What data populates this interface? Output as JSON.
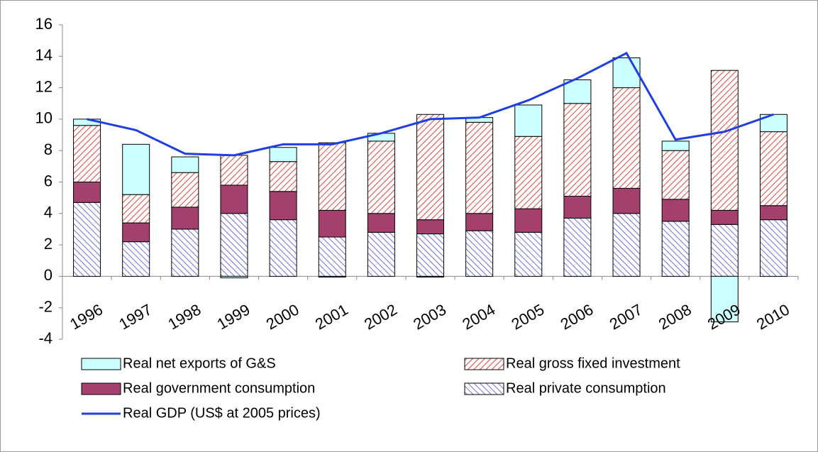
{
  "chart_data": {
    "type": "bar",
    "stacked": true,
    "categories": [
      "1996",
      "1997",
      "1998",
      "1999",
      "2000",
      "2001",
      "2002",
      "2003",
      "2004",
      "2005",
      "2006",
      "2007",
      "2008",
      "2009",
      "2010"
    ],
    "series": [
      {
        "name": "Real private consumption",
        "color": "#6f6fe0",
        "hatch": "backward",
        "values": [
          4.7,
          2.2,
          3.0,
          4.0,
          3.6,
          2.5,
          2.8,
          2.7,
          2.9,
          2.8,
          3.7,
          4.0,
          3.5,
          3.3,
          3.6
        ]
      },
      {
        "name": "Real government consumption",
        "color": "#a3406e",
        "values": [
          1.3,
          1.2,
          1.4,
          1.8,
          1.8,
          1.7,
          1.2,
          0.9,
          1.1,
          1.5,
          1.4,
          1.6,
          1.4,
          0.9,
          0.9
        ]
      },
      {
        "name": "Real gross fixed investment",
        "color": "#e0483c",
        "hatch": "forward",
        "values": [
          3.6,
          1.8,
          2.2,
          1.9,
          1.9,
          4.3,
          4.6,
          6.7,
          5.8,
          4.6,
          5.9,
          6.4,
          3.1,
          8.9,
          4.7
        ]
      },
      {
        "name": "Real net exports of G&S",
        "color": "#ccffff",
        "values": [
          0.4,
          3.2,
          1.0,
          -0.1,
          0.9,
          -0.05,
          0.5,
          -0.05,
          0.3,
          2.0,
          1.5,
          1.9,
          0.6,
          -2.9,
          1.1
        ]
      },
      {
        "name": "Real GDP (US$ at 2005 prices)",
        "color": "#1f3fe0",
        "type": "line",
        "values": [
          10.0,
          9.3,
          7.8,
          7.7,
          8.4,
          8.4,
          9.1,
          10.0,
          10.1,
          11.2,
          12.6,
          14.2,
          8.7,
          9.2,
          10.3
        ]
      }
    ],
    "legend_order": [
      3,
      2,
      1,
      0,
      4
    ],
    "ylim": [
      -4,
      16
    ],
    "yticks": [
      16,
      14,
      12,
      10,
      8,
      6,
      4,
      2,
      0,
      -2,
      -4
    ],
    "grid": false
  }
}
